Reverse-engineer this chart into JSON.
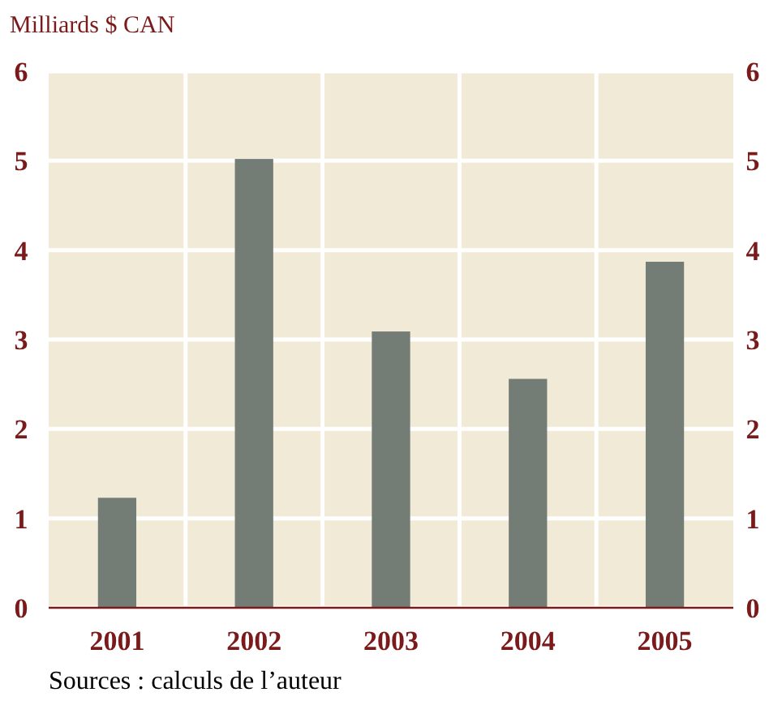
{
  "chart_data": {
    "type": "bar",
    "ylabel": "Milliards $ CAN",
    "categories": [
      "2001",
      "2002",
      "2003",
      "2004",
      "2005"
    ],
    "values": [
      1.23,
      5.02,
      3.09,
      2.56,
      3.87
    ],
    "color": "#747c76",
    "ylim": [
      0,
      6
    ],
    "yticks": [
      0,
      1,
      2,
      3,
      4,
      5,
      6
    ],
    "y2lim": [
      0,
      6
    ],
    "y2ticks": [
      0,
      1,
      2,
      3,
      4,
      5,
      6
    ],
    "grid": true,
    "annotations": [
      "Sources : calculs de l’auteur"
    ]
  }
}
